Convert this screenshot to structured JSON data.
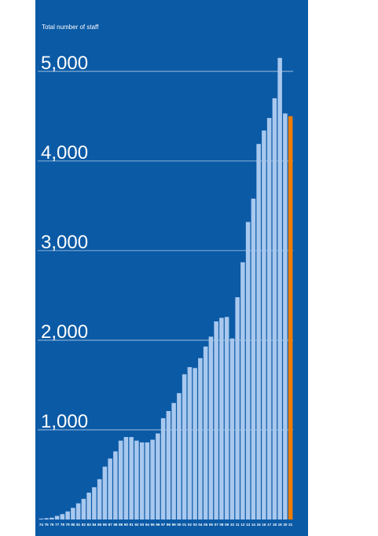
{
  "chart_data": {
    "type": "bar",
    "title": "Total number of staff",
    "categories": [
      "74",
      "75",
      "76",
      "77",
      "78",
      "79",
      "80",
      "81",
      "82",
      "83",
      "84",
      "85",
      "86",
      "87",
      "88",
      "89",
      "90",
      "91",
      "92",
      "93",
      "94",
      "95",
      "96",
      "97",
      "98",
      "99",
      "00",
      "01",
      "02",
      "03",
      "04",
      "05",
      "06",
      "07",
      "08",
      "09",
      "10",
      "11",
      "12",
      "13",
      "14",
      "15",
      "16",
      "17",
      "18",
      "19",
      "20",
      "21"
    ],
    "values": [
      10,
      15,
      20,
      40,
      60,
      90,
      130,
      180,
      230,
      300,
      360,
      450,
      590,
      680,
      760,
      880,
      920,
      920,
      880,
      860,
      860,
      890,
      960,
      1130,
      1210,
      1300,
      1410,
      1620,
      1700,
      1690,
      1800,
      1930,
      2040,
      2210,
      2250,
      2260,
      2020,
      2480,
      2870,
      3320,
      3580,
      4190,
      4340,
      4480,
      4700,
      5150,
      4530,
      4500
    ],
    "color": "#a9c8ee",
    "highlight": {
      "category": "21",
      "color": "#f07d00"
    },
    "background": "#0b5aa6",
    "ylim": [
      0,
      5200
    ],
    "yticks": [
      {
        "value": 1000,
        "label": "1,000"
      },
      {
        "value": 2000,
        "label": "2,000"
      },
      {
        "value": 3000,
        "label": "3,000"
      },
      {
        "value": 4000,
        "label": "4,000"
      },
      {
        "value": 5000,
        "label": "5,000"
      }
    ],
    "grid": true
  }
}
